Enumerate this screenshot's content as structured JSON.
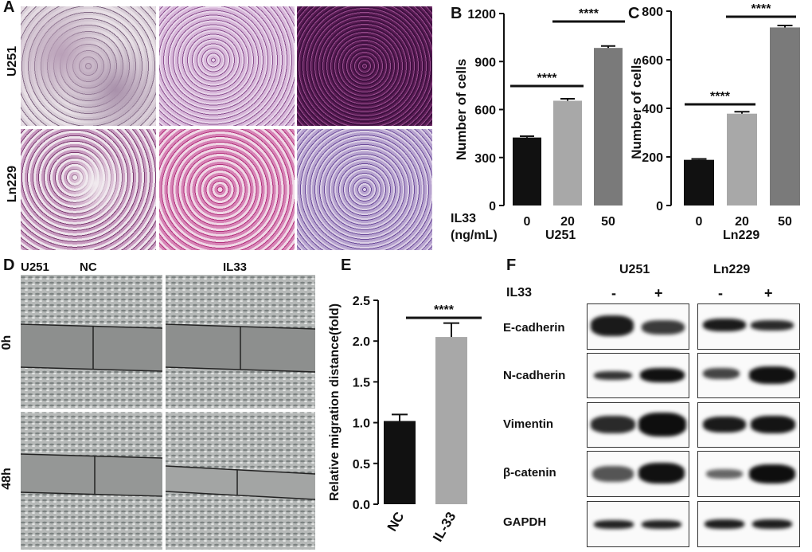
{
  "panelA": {
    "label": "A",
    "rows": [
      "U251",
      "Ln229"
    ]
  },
  "panelB": {
    "label": "B",
    "ylabel": "Number of cells",
    "treatment_label": "IL33",
    "unit_label": "(ng/mL)",
    "cell_line": "U251",
    "significance": [
      "****",
      "****"
    ]
  },
  "panelC": {
    "label": "C",
    "ylabel": "Number of cells",
    "cell_line": "Ln229",
    "significance": [
      "****",
      "****"
    ]
  },
  "panelD": {
    "label": "D",
    "cell_line": "U251",
    "col_labels": [
      "NC",
      "IL33"
    ],
    "row_labels": [
      "0h",
      "48h"
    ]
  },
  "panelE": {
    "label": "E",
    "ylabel": "Relative migration distance(fold)",
    "significance": "****"
  },
  "panelF": {
    "label": "F",
    "cell_lines": [
      "U251",
      "Ln229"
    ],
    "treatment_label": "IL33",
    "signs": [
      "-",
      "+",
      "-",
      "+"
    ],
    "proteins": [
      "E-cadherin",
      "N-cadherin",
      "Vimentin",
      "β-catenin",
      "GAPDH"
    ]
  },
  "chart_data": [
    {
      "type": "bar",
      "panel": "B",
      "categories": [
        "0",
        "20",
        "50"
      ],
      "values": [
        425,
        655,
        985
      ],
      "errors": [
        8,
        12,
        12
      ],
      "colors": [
        "#111111",
        "#a8a8a8",
        "#7a7a7a"
      ],
      "ylabel": "Number of cells",
      "ylim": [
        0,
        1200
      ],
      "yticks": [
        0,
        300,
        600,
        900,
        1200
      ],
      "xlabel": "U251"
    },
    {
      "type": "bar",
      "panel": "C",
      "categories": [
        "0",
        "20",
        "50"
      ],
      "values": [
        188,
        378,
        733
      ],
      "errors": [
        4,
        8,
        8
      ],
      "colors": [
        "#111111",
        "#a8a8a8",
        "#7a7a7a"
      ],
      "ylabel": "Number of cells",
      "ylim": [
        0,
        800
      ],
      "yticks": [
        0,
        200,
        400,
        600,
        800
      ],
      "xlabel": "Ln229"
    },
    {
      "type": "bar",
      "panel": "E",
      "categories": [
        "NC",
        "IL-33"
      ],
      "values": [
        1.02,
        2.05
      ],
      "errors": [
        0.08,
        0.17
      ],
      "colors": [
        "#111111",
        "#a8a8a8"
      ],
      "ylabel": "Relative migration distance(fold)",
      "ylim": [
        0,
        2.5
      ],
      "yticks": [
        "0.0",
        "0.5",
        "1.0",
        "1.5",
        "2.0",
        "2.5"
      ]
    }
  ]
}
